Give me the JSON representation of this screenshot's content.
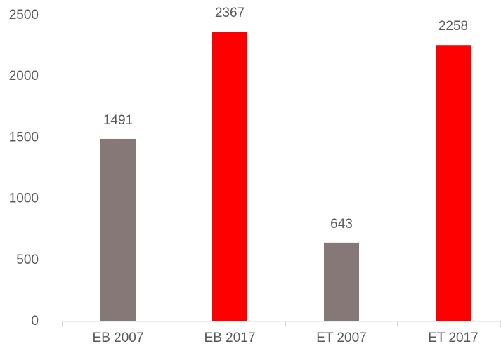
{
  "chart_data": {
    "type": "bar",
    "categories": [
      "EB 2007",
      "EB 2017",
      "ET 2007",
      "ET 2017"
    ],
    "values": [
      1491,
      2367,
      643,
      2258
    ],
    "colors": [
      "#857877",
      "#ff0000",
      "#857877",
      "#ff0000"
    ],
    "ylim": [
      0,
      2500
    ],
    "yticks": [
      0,
      500,
      1000,
      1500,
      2000,
      2500
    ],
    "grid": false
  }
}
